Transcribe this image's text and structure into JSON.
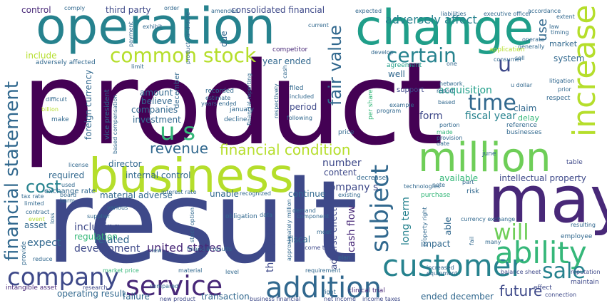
{
  "colors": {
    "background": "#ffffff",
    "palette": [
      "#440154",
      "#482878",
      "#3e4989",
      "#31688e",
      "#26828e",
      "#1f9e89",
      "#35b779",
      "#6ece58",
      "#b5de2b",
      "#fde725"
    ]
  },
  "words": [
    {
      "text": "product",
      "color": "#440154"
    },
    {
      "text": "result",
      "color": "#3e4989"
    },
    {
      "text": "operation",
      "color": "#26828e"
    },
    {
      "text": "change",
      "color": "#1f9e89"
    },
    {
      "text": "business",
      "color": "#b5de2b"
    },
    {
      "text": "may",
      "color": "#482878"
    },
    {
      "text": "million",
      "color": "#6ece58"
    },
    {
      "text": "customer",
      "color": "#26828e"
    },
    {
      "text": "addition",
      "color": "#31688e"
    },
    {
      "text": "service",
      "color": "#482878"
    },
    {
      "text": "company",
      "color": "#3e4989"
    },
    {
      "text": "ability",
      "color": "#35b779"
    },
    {
      "text": "increase",
      "color": "#b5de2b"
    },
    {
      "text": "sale",
      "color": "#26828e"
    },
    {
      "text": "subject",
      "color": "#31688e"
    },
    {
      "text": "common stock",
      "color": "#b5de2b"
    },
    {
      "text": "certain",
      "color": "#26828e"
    },
    {
      "text": "time",
      "color": "#31688e"
    },
    {
      "text": "will",
      "color": "#6ece58"
    },
    {
      "text": "u s",
      "color": "#35b779"
    },
    {
      "text": "financial condition",
      "color": "#b5de2b"
    },
    {
      "text": "financial statement",
      "color": "#31688e"
    },
    {
      "text": "fair value",
      "color": "#31688e"
    },
    {
      "text": "future",
      "color": "#3e4989"
    },
    {
      "text": "revenue",
      "color": "#31688e"
    },
    {
      "text": "cost",
      "color": "#26828e"
    },
    {
      "text": "adversely affect",
      "color": "#26828e"
    },
    {
      "text": "u",
      "color": "#3e4989"
    },
    {
      "text": "united states",
      "color": "#482878"
    },
    {
      "text": "use",
      "color": "#31688e"
    },
    {
      "text": "consolidated financial",
      "color": "#3e4989"
    },
    {
      "text": "third party",
      "color": "#3e4989"
    },
    {
      "text": "control",
      "color": "#482878"
    },
    {
      "text": "year ended",
      "color": "#31688e"
    },
    {
      "text": "acquisition",
      "color": "#1f9e89"
    },
    {
      "text": "fiscal year",
      "color": "#26828e"
    },
    {
      "text": "intellectual property",
      "color": "#3e4989"
    },
    {
      "text": "system",
      "color": "#31688e"
    },
    {
      "text": "market",
      "color": "#31688e"
    },
    {
      "text": "claim",
      "color": "#31688e"
    },
    {
      "text": "delay",
      "color": "#35b779"
    },
    {
      "text": "include",
      "color": "#b5de2b"
    },
    {
      "text": "adversely affected",
      "color": "#31688e"
    },
    {
      "text": "competitor",
      "color": "#482878"
    },
    {
      "text": "well",
      "color": "#31688e"
    },
    {
      "text": "agreement",
      "color": "#1f9e89"
    },
    {
      "text": "support",
      "color": "#3e4989"
    },
    {
      "text": "amount",
      "color": "#31688e"
    },
    {
      "text": "believe",
      "color": "#31688e"
    },
    {
      "text": "companies",
      "color": "#31688e"
    },
    {
      "text": "investment",
      "color": "#31688e"
    },
    {
      "text": "director",
      "color": "#31688e"
    },
    {
      "text": "required",
      "color": "#31688e"
    },
    {
      "text": "internal control",
      "color": "#31688e"
    },
    {
      "text": "exchange rate",
      "color": "#31688e"
    },
    {
      "text": "material adverse",
      "color": "#31688e"
    },
    {
      "text": "unable",
      "color": "#31688e"
    },
    {
      "text": "continue",
      "color": "#31688e"
    },
    {
      "text": "number",
      "color": "#3e4989"
    },
    {
      "text": "content",
      "color": "#3e4989"
    },
    {
      "text": "company s",
      "color": "#3e4989"
    },
    {
      "text": "cash flow",
      "color": "#482878"
    },
    {
      "text": "long term",
      "color": "#26828e"
    },
    {
      "text": "adverse effect",
      "color": "#3e4989"
    },
    {
      "text": "third parties",
      "color": "#3e4989"
    },
    {
      "text": "impact",
      "color": "#31688e"
    },
    {
      "text": "related",
      "color": "#31688e"
    },
    {
      "text": "including",
      "color": "#3e4989"
    },
    {
      "text": "regulation",
      "color": "#35b779"
    },
    {
      "text": "development",
      "color": "#3e4989"
    },
    {
      "text": "expect",
      "color": "#31688e"
    },
    {
      "text": "asset",
      "color": "#31688e"
    },
    {
      "text": "form",
      "color": "#3e4989"
    },
    {
      "text": "period",
      "color": "#3e4989"
    },
    {
      "text": "available",
      "color": "#35b779"
    },
    {
      "text": "operating result",
      "color": "#31688e"
    },
    {
      "text": "failure",
      "color": "#31688e"
    },
    {
      "text": "transaction",
      "color": "#31688e"
    },
    {
      "text": "ended december",
      "color": "#31688e"
    },
    {
      "text": "fiscal",
      "color": "#31688e"
    },
    {
      "text": "income tax",
      "color": "#3e4989"
    },
    {
      "text": "net income",
      "color": "#3e4989"
    },
    {
      "text": "income taxes",
      "color": "#3e4989"
    },
    {
      "text": "clinical trial",
      "color": "#482878"
    },
    {
      "text": "business financial",
      "color": "#3e4989"
    },
    {
      "text": "new product",
      "color": "#3e4989"
    },
    {
      "text": "research",
      "color": "#3e4989"
    },
    {
      "text": "intangible asset",
      "color": "#482878"
    },
    {
      "text": "balance sheet",
      "color": "#3e4989"
    },
    {
      "text": "reputation",
      "color": "#3e4989"
    },
    {
      "text": "maintain",
      "color": "#3e4989"
    },
    {
      "text": "connection",
      "color": "#3e4989"
    },
    {
      "text": "effect",
      "color": "#3e4989"
    },
    {
      "text": "employee",
      "color": "#31688e"
    },
    {
      "text": "risk",
      "color": "#31688e"
    },
    {
      "text": "purchase",
      "color": "#35b779"
    },
    {
      "text": "june",
      "color": "#31688e"
    },
    {
      "text": "table",
      "color": "#3e4989"
    },
    {
      "text": "price",
      "color": "#31688e"
    },
    {
      "text": "decrease",
      "color": "#31688e"
    },
    {
      "text": "decline",
      "color": "#31688e"
    },
    {
      "text": "january",
      "color": "#31688e"
    },
    {
      "text": "recorded",
      "color": "#31688e"
    },
    {
      "text": "filed",
      "color": "#31688e"
    },
    {
      "text": "included",
      "color": "#31688e"
    },
    {
      "text": "december",
      "color": "#31688e"
    },
    {
      "text": "estimate",
      "color": "#31688e"
    },
    {
      "text": "years ended",
      "color": "#31688e"
    },
    {
      "text": "respect",
      "color": "#31688e"
    },
    {
      "text": "reference",
      "color": "#31688e"
    },
    {
      "text": "businesses",
      "color": "#31688e"
    },
    {
      "text": "made",
      "color": "#35b779"
    },
    {
      "text": "provision",
      "color": "#31688e"
    },
    {
      "text": "date",
      "color": "#31688e"
    },
    {
      "text": "based",
      "color": "#31688e"
    },
    {
      "text": "portion",
      "color": "#31688e"
    },
    {
      "text": "program",
      "color": "#31688e"
    },
    {
      "text": "example",
      "color": "#31688e"
    },
    {
      "text": "per share",
      "color": "#35b779"
    },
    {
      "text": "current",
      "color": "#31688e"
    },
    {
      "text": "expected",
      "color": "#31688e"
    },
    {
      "text": "comply",
      "color": "#31688e"
    },
    {
      "text": "order",
      "color": "#31688e"
    },
    {
      "text": "amended",
      "color": "#31688e"
    },
    {
      "text": "payment",
      "color": "#31688e"
    },
    {
      "text": "exhibit",
      "color": "#31688e"
    },
    {
      "text": "due",
      "color": "#31688e"
    },
    {
      "text": "product candidate",
      "color": "#31688e"
    },
    {
      "text": "executive officer",
      "color": "#31688e"
    },
    {
      "text": "liabilities",
      "color": "#31688e"
    },
    {
      "text": "accordance",
      "color": "#31688e"
    },
    {
      "text": "extent",
      "color": "#31688e"
    },
    {
      "text": "law",
      "color": "#31688e"
    },
    {
      "text": "timing",
      "color": "#31688e"
    },
    {
      "text": "generally",
      "color": "#31688e"
    },
    {
      "text": "operate",
      "color": "#31688e"
    },
    {
      "text": "sell",
      "color": "#31688e"
    },
    {
      "text": "consumer",
      "color": "#31688e"
    },
    {
      "text": "application",
      "color": "#b5de2b"
    },
    {
      "text": "develop",
      "color": "#31688e"
    },
    {
      "text": "one",
      "color": "#31688e"
    },
    {
      "text": "network",
      "color": "#31688e"
    },
    {
      "text": "report",
      "color": "#31688e"
    },
    {
      "text": "u dollar",
      "color": "#31688e"
    },
    {
      "text": "litigation",
      "color": "#31688e"
    },
    {
      "text": "prior",
      "color": "#31688e"
    },
    {
      "text": "difficult",
      "color": "#31688e"
    },
    {
      "text": "billion",
      "color": "#b5de2b"
    },
    {
      "text": "make",
      "color": "#31688e"
    },
    {
      "text": "vice president",
      "color": "#31688e"
    },
    {
      "text": "foreign currency",
      "color": "#31688e"
    },
    {
      "text": "based compensation",
      "color": "#31688e"
    },
    {
      "text": "license",
      "color": "#31688e"
    },
    {
      "text": "used",
      "color": "#31688e"
    },
    {
      "text": "tax rate",
      "color": "#31688e"
    },
    {
      "text": "board",
      "color": "#31688e"
    },
    {
      "text": "harm",
      "color": "#31688e"
    },
    {
      "text": "limited",
      "color": "#31688e"
    },
    {
      "text": "contract",
      "color": "#31688e"
    },
    {
      "text": "event",
      "color": "#b5de2b"
    },
    {
      "text": "loss",
      "color": "#31688e"
    },
    {
      "text": "supplier",
      "color": "#31688e"
    },
    {
      "text": "various",
      "color": "#31688e"
    },
    {
      "text": "interest rate",
      "color": "#31688e"
    },
    {
      "text": "recognized",
      "color": "#31688e"
    },
    {
      "text": "stock option",
      "color": "#31688e"
    },
    {
      "text": "obligation",
      "color": "#31688e"
    },
    {
      "text": "data",
      "color": "#31688e"
    },
    {
      "text": "approximately million",
      "color": "#31688e"
    },
    {
      "text": "financial results",
      "color": "#31688e"
    },
    {
      "text": "new",
      "color": "#31688e"
    },
    {
      "text": "compared",
      "color": "#31688e"
    },
    {
      "text": "material",
      "color": "#31688e"
    },
    {
      "text": "level",
      "color": "#31688e"
    },
    {
      "text": "market price",
      "color": "#35b779"
    },
    {
      "text": "reduce",
      "color": "#31688e"
    },
    {
      "text": "provide",
      "color": "#31688e"
    },
    {
      "text": "demand",
      "color": "#31688e"
    },
    {
      "text": "component",
      "color": "#31688e"
    },
    {
      "text": "existing",
      "color": "#31688e"
    },
    {
      "text": "meet",
      "color": "#31688e"
    },
    {
      "text": "plan",
      "color": "#31688e"
    },
    {
      "text": "requirement",
      "color": "#31688e"
    },
    {
      "text": "right",
      "color": "#31688e"
    },
    {
      "text": "equipment",
      "color": "#31688e"
    },
    {
      "text": "increased",
      "color": "#31688e"
    },
    {
      "text": "able",
      "color": "#31688e"
    },
    {
      "text": "property right",
      "color": "#31688e"
    },
    {
      "text": "currency exchange",
      "color": "#31688e"
    },
    {
      "text": "fail",
      "color": "#31688e"
    },
    {
      "text": "many",
      "color": "#31688e"
    },
    {
      "text": "resulting",
      "color": "#31688e"
    },
    {
      "text": "note",
      "color": "#31688e"
    },
    {
      "text": "part",
      "color": "#31688e"
    },
    {
      "text": "technologies",
      "color": "#31688e"
    },
    {
      "text": "financial reporting",
      "color": "#31688e"
    },
    {
      "text": "respectively",
      "color": "#31688e"
    },
    {
      "text": "following",
      "color": "#31688e"
    },
    {
      "text": "cash",
      "color": "#31688e"
    },
    {
      "text": "limit",
      "color": "#31688e"
    }
  ]
}
